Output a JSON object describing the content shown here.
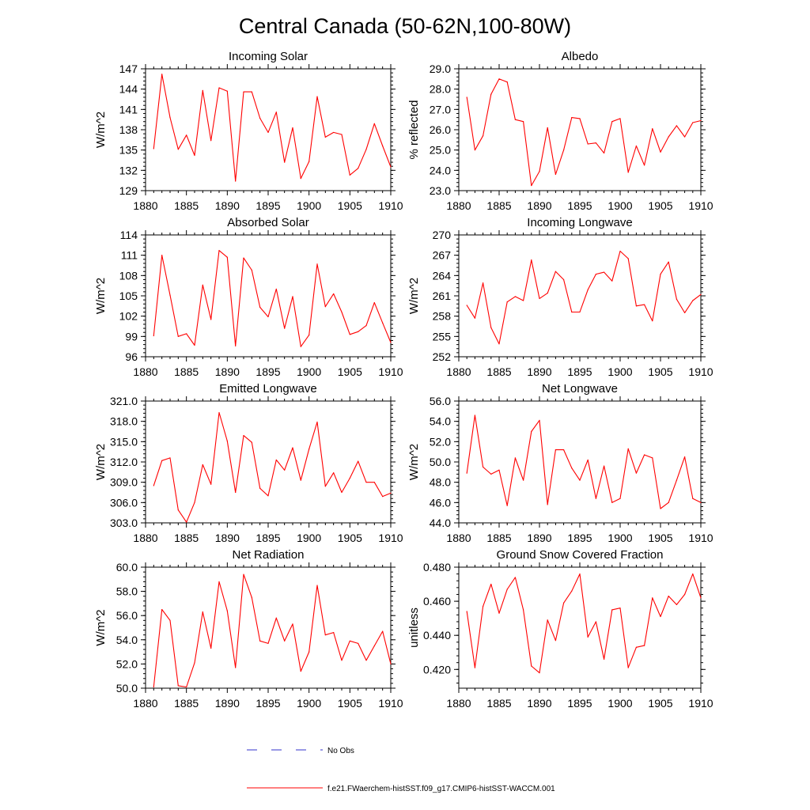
{
  "title": "Central Canada (50-62N,100-80W)",
  "legend": {
    "obs_label": "No Obs",
    "model_label": "f.e21.FWaerchem-histSST.f09_g17.CMIP6-histSST-WACCM.001",
    "obs_color": "#3333cc",
    "model_color": "#ff0000"
  },
  "chart_data": [
    {
      "type": "line",
      "title": "Incoming Solar",
      "xlabel": "",
      "ylabel": "W/m^2",
      "xlim": [
        1880,
        1910
      ],
      "ylim": [
        129,
        147
      ],
      "xticks": [
        "1880",
        "1885",
        "1890",
        "1895",
        "1900",
        "1905",
        "1910"
      ],
      "yticks": [
        "129",
        "132",
        "135",
        "138",
        "141",
        "144",
        "147"
      ],
      "series": [
        {
          "color": "#ff0000",
          "x": [
            1881,
            1882,
            1883,
            1884,
            1885,
            1886,
            1887,
            1888,
            1889,
            1890,
            1891,
            1892,
            1893,
            1894,
            1895,
            1896,
            1897,
            1898,
            1899,
            1900,
            1901,
            1902,
            1903,
            1904,
            1905,
            1906,
            1907,
            1908,
            1909,
            1910
          ],
          "values": [
            135.2,
            146.2,
            139.8,
            135.1,
            137.2,
            134.2,
            143.8,
            136.4,
            144.2,
            143.7,
            130.4,
            143.6,
            143.6,
            139.7,
            137.6,
            140.6,
            133.2,
            138.3,
            130.8,
            133.3,
            142.9,
            136.9,
            137.6,
            137.3,
            131.3,
            132.3,
            135.1,
            138.9,
            135.6,
            132.5
          ]
        }
      ]
    },
    {
      "type": "line",
      "title": "Albedo",
      "xlabel": "",
      "ylabel": "% reflected",
      "xlim": [
        1880,
        1910
      ],
      "ylim": [
        23,
        29
      ],
      "xticks": [
        "1880",
        "1885",
        "1890",
        "1895",
        "1900",
        "1905",
        "1910"
      ],
      "yticks": [
        "23.0",
        "24.0",
        "25.0",
        "26.0",
        "27.0",
        "28.0",
        "29.0"
      ],
      "series": [
        {
          "color": "#ff0000",
          "x": [
            1881,
            1882,
            1883,
            1884,
            1885,
            1886,
            1887,
            1888,
            1889,
            1890,
            1891,
            1892,
            1893,
            1894,
            1895,
            1896,
            1897,
            1898,
            1899,
            1900,
            1901,
            1902,
            1903,
            1904,
            1905,
            1906,
            1907,
            1908,
            1909,
            1910
          ],
          "values": [
            27.6,
            25.0,
            25.7,
            27.75,
            28.5,
            28.35,
            26.5,
            26.4,
            23.25,
            23.95,
            26.1,
            23.8,
            25.0,
            26.6,
            26.55,
            25.3,
            25.35,
            24.85,
            26.4,
            26.55,
            23.9,
            25.2,
            24.25,
            26.05,
            24.9,
            25.65,
            26.2,
            25.65,
            26.35,
            26.45
          ]
        }
      ]
    },
    {
      "type": "line",
      "title": "Absorbed Solar",
      "xlabel": "",
      "ylabel": "W/m^2",
      "xlim": [
        1880,
        1910
      ],
      "ylim": [
        96,
        114
      ],
      "xticks": [
        "1880",
        "1885",
        "1890",
        "1895",
        "1900",
        "1905",
        "1910"
      ],
      "yticks": [
        "96",
        "99",
        "102",
        "105",
        "108",
        "111",
        "114"
      ],
      "series": [
        {
          "color": "#ff0000",
          "x": [
            1881,
            1882,
            1883,
            1884,
            1885,
            1886,
            1887,
            1888,
            1889,
            1890,
            1891,
            1892,
            1893,
            1894,
            1895,
            1896,
            1897,
            1898,
            1899,
            1900,
            1901,
            1902,
            1903,
            1904,
            1905,
            1906,
            1907,
            1908,
            1909,
            1910
          ],
          "values": [
            99.1,
            111.0,
            105.1,
            99.0,
            99.4,
            97.7,
            106.6,
            101.5,
            111.7,
            110.7,
            97.6,
            110.6,
            108.8,
            103.3,
            101.9,
            106.0,
            100.2,
            104.9,
            97.5,
            99.2,
            109.7,
            103.4,
            105.3,
            102.6,
            99.3,
            99.7,
            100.6,
            104.0,
            101.0,
            98.1
          ]
        }
      ]
    },
    {
      "type": "line",
      "title": "Incoming Longwave",
      "xlabel": "",
      "ylabel": "W/m^2",
      "xlim": [
        1880,
        1910
      ],
      "ylim": [
        252,
        270
      ],
      "xticks": [
        "1880",
        "1885",
        "1890",
        "1895",
        "1900",
        "1905",
        "1910"
      ],
      "yticks": [
        "252",
        "255",
        "258",
        "261",
        "264",
        "267",
        "270"
      ],
      "series": [
        {
          "color": "#ff0000",
          "x": [
            1881,
            1882,
            1883,
            1884,
            1885,
            1886,
            1887,
            1888,
            1889,
            1890,
            1891,
            1892,
            1893,
            1894,
            1895,
            1896,
            1897,
            1898,
            1899,
            1900,
            1901,
            1902,
            1903,
            1904,
            1905,
            1906,
            1907,
            1908,
            1909,
            1910
          ],
          "values": [
            259.6,
            257.7,
            262.9,
            256.3,
            253.9,
            260.1,
            260.9,
            260.3,
            266.3,
            260.6,
            261.4,
            264.6,
            263.4,
            258.6,
            258.6,
            261.9,
            264.2,
            264.5,
            263.2,
            267.6,
            266.5,
            259.5,
            259.7,
            257.3,
            264.2,
            266.0,
            260.5,
            258.5,
            260.3,
            261.2
          ]
        }
      ]
    },
    {
      "type": "line",
      "title": "Emitted Longwave",
      "xlabel": "",
      "ylabel": "W/m^2",
      "xlim": [
        1880,
        1910
      ],
      "ylim": [
        303,
        321
      ],
      "xticks": [
        "1880",
        "1885",
        "1890",
        "1895",
        "1900",
        "1905",
        "1910"
      ],
      "yticks": [
        "303.0",
        "306.0",
        "309.0",
        "312.0",
        "315.0",
        "318.0",
        "321.0"
      ],
      "series": [
        {
          "color": "#ff0000",
          "x": [
            1881,
            1882,
            1883,
            1884,
            1885,
            1886,
            1887,
            1888,
            1889,
            1890,
            1891,
            1892,
            1893,
            1894,
            1895,
            1896,
            1897,
            1898,
            1899,
            1900,
            1901,
            1902,
            1903,
            1904,
            1905,
            1906,
            1907,
            1908,
            1909,
            1910
          ],
          "values": [
            308.5,
            312.2,
            312.6,
            304.9,
            303.1,
            306.0,
            311.6,
            308.7,
            319.3,
            315.1,
            307.5,
            315.9,
            314.9,
            308.1,
            307.0,
            312.3,
            310.8,
            314.1,
            309.3,
            313.9,
            317.9,
            308.4,
            310.4,
            307.5,
            309.6,
            312.1,
            309.0,
            309.0,
            306.9,
            307.4
          ]
        }
      ]
    },
    {
      "type": "line",
      "title": "Net Longwave",
      "xlabel": "",
      "ylabel": "W/m^2",
      "xlim": [
        1880,
        1910
      ],
      "ylim": [
        44,
        56
      ],
      "xticks": [
        "1880",
        "1885",
        "1890",
        "1895",
        "1900",
        "1905",
        "1910"
      ],
      "yticks": [
        "44.0",
        "46.0",
        "48.0",
        "50.0",
        "52.0",
        "54.0",
        "56.0"
      ],
      "series": [
        {
          "color": "#ff0000",
          "x": [
            1881,
            1882,
            1883,
            1884,
            1885,
            1886,
            1887,
            1888,
            1889,
            1890,
            1891,
            1892,
            1893,
            1894,
            1895,
            1896,
            1897,
            1898,
            1899,
            1900,
            1901,
            1902,
            1903,
            1904,
            1905,
            1906,
            1907,
            1908,
            1909,
            1910
          ],
          "values": [
            48.9,
            54.6,
            49.5,
            48.8,
            49.2,
            45.7,
            50.4,
            48.2,
            53.0,
            54.1,
            45.8,
            51.2,
            51.2,
            49.4,
            48.2,
            50.2,
            46.4,
            49.6,
            46.0,
            46.4,
            51.3,
            48.9,
            50.7,
            50.4,
            45.4,
            46.0,
            48.2,
            50.5,
            46.4,
            46.0
          ]
        }
      ]
    },
    {
      "type": "line",
      "title": "Net Radiation",
      "xlabel": "",
      "ylabel": "W/m^2",
      "xlim": [
        1880,
        1910
      ],
      "ylim": [
        50,
        60
      ],
      "xticks": [
        "1880",
        "1885",
        "1890",
        "1895",
        "1900",
        "1905",
        "1910"
      ],
      "yticks": [
        "50.0",
        "52.0",
        "54.0",
        "56.0",
        "58.0",
        "60.0"
      ],
      "series": [
        {
          "color": "#ff0000",
          "x": [
            1881,
            1882,
            1883,
            1884,
            1885,
            1886,
            1887,
            1888,
            1889,
            1890,
            1891,
            1892,
            1893,
            1894,
            1895,
            1896,
            1897,
            1898,
            1899,
            1900,
            1901,
            1902,
            1903,
            1904,
            1905,
            1906,
            1907,
            1908,
            1909,
            1910
          ],
          "values": [
            50.1,
            56.5,
            55.6,
            50.2,
            50.1,
            52.1,
            56.3,
            53.3,
            58.8,
            56.4,
            51.7,
            59.4,
            57.5,
            53.9,
            53.7,
            55.8,
            53.9,
            55.3,
            51.4,
            53.0,
            58.5,
            54.4,
            54.6,
            52.3,
            53.9,
            53.7,
            52.3,
            53.5,
            54.7,
            52.0
          ]
        }
      ]
    },
    {
      "type": "line",
      "title": "Ground Snow Covered Fraction",
      "xlabel": "",
      "ylabel": "unitless",
      "xlim": [
        1880,
        1910
      ],
      "ylim": [
        0.409,
        0.48
      ],
      "xticks": [
        "1880",
        "1885",
        "1890",
        "1895",
        "1900",
        "1905",
        "1910"
      ],
      "yticks": [
        "0.420",
        "0.440",
        "0.460",
        "0.480"
      ],
      "series": [
        {
          "color": "#ff0000",
          "x": [
            1881,
            1882,
            1883,
            1884,
            1885,
            1886,
            1887,
            1888,
            1889,
            1890,
            1891,
            1892,
            1893,
            1894,
            1895,
            1896,
            1897,
            1898,
            1899,
            1900,
            1901,
            1902,
            1903,
            1904,
            1905,
            1906,
            1907,
            1908,
            1909,
            1910
          ],
          "values": [
            0.454,
            0.421,
            0.457,
            0.47,
            0.453,
            0.467,
            0.474,
            0.455,
            0.422,
            0.418,
            0.449,
            0.437,
            0.459,
            0.466,
            0.476,
            0.439,
            0.448,
            0.426,
            0.455,
            0.456,
            0.421,
            0.433,
            0.434,
            0.462,
            0.451,
            0.463,
            0.458,
            0.464,
            0.476,
            0.462
          ]
        }
      ]
    }
  ]
}
